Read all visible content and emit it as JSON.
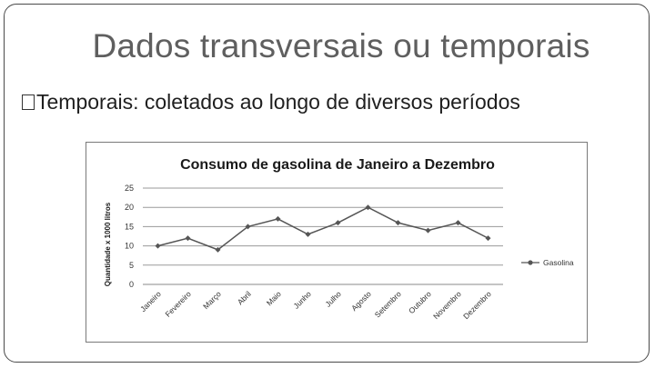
{
  "slide": {
    "title": "Dados transversais ou temporais",
    "bullet": "Temporais: coletados ao longo de diversos períodos"
  },
  "chart_data": {
    "type": "line",
    "title": "Consumo de gasolina de Janeiro a Dezembro",
    "xlabel": "",
    "ylabel": "Quantidade x 1000 litros",
    "categories": [
      "Janeiro",
      "Fevereiro",
      "Março",
      "Abril",
      "Maio",
      "Junho",
      "Julho",
      "Agosto",
      "Setembro",
      "Outubro",
      "Novembro",
      "Dezembro"
    ],
    "series": [
      {
        "name": "Gasolina",
        "values": [
          10,
          12,
          9,
          15,
          17,
          13,
          16,
          20,
          16,
          14,
          16,
          12
        ],
        "color": "#555555"
      }
    ],
    "ylim": [
      0,
      25
    ],
    "yticks": [
      0,
      5,
      10,
      15,
      20,
      25
    ],
    "grid": true,
    "legend": "right"
  }
}
